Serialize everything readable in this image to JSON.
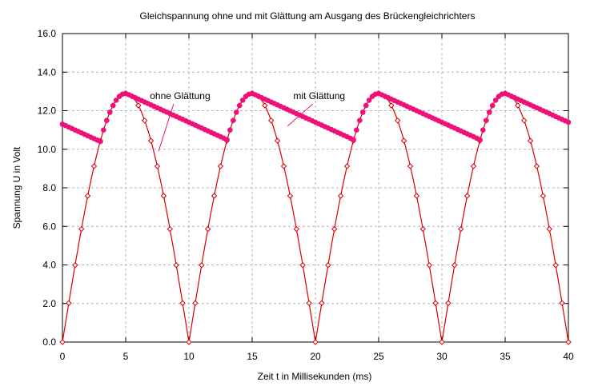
{
  "chart_data": {
    "type": "line",
    "title": "Gleichspannung ohne und mit Glättung am Ausgang des Brückengleichrichters",
    "xlabel": "Zeit t  in Millisekunden (ms)",
    "ylabel": "Spannung U in Volt",
    "xlim": [
      0,
      40
    ],
    "ylim": [
      0,
      16
    ],
    "grid": true,
    "x_ticks": [
      0,
      5,
      10,
      15,
      20,
      25,
      30,
      35,
      40
    ],
    "x_tick_labels": [
      "0",
      "5",
      "10",
      "15",
      "20",
      "25",
      "30",
      "35",
      "40"
    ],
    "y_ticks": [
      0,
      2,
      4,
      6,
      8,
      10,
      12,
      14,
      16
    ],
    "y_tick_labels": [
      "0.0",
      "2.0",
      "4.0",
      "6.0",
      "8.0",
      "10.0",
      "12.0",
      "14.0",
      "16.0"
    ],
    "series": [
      {
        "name": "ohne Glättung",
        "color": "#dd0000",
        "marker": "diamond",
        "period_ms": 10,
        "peak_v": 12.9,
        "x": [
          0,
          0.5,
          1,
          1.5,
          2,
          2.5,
          3,
          3.5,
          4,
          4.5,
          5,
          5.5,
          6,
          6.5,
          7,
          7.5,
          8,
          8.5,
          9,
          9.5,
          10,
          10.5,
          11,
          11.5,
          12,
          12.5,
          13,
          13.5,
          14,
          14.5,
          15,
          15.5,
          16,
          16.5,
          17,
          17.5,
          18,
          18.5,
          19,
          19.5,
          20,
          20.5,
          21,
          21.5,
          22,
          22.5,
          23,
          23.5,
          24,
          24.5,
          25,
          25.5,
          26,
          26.5,
          27,
          27.5,
          28,
          28.5,
          29,
          29.5,
          30,
          30.5,
          31,
          31.5,
          32,
          32.5,
          33,
          33.5,
          34,
          34.5,
          35,
          35.5,
          36,
          36.5,
          37,
          37.5,
          38,
          38.5,
          39,
          39.5,
          40
        ],
        "values": [
          0,
          2.02,
          3.99,
          5.86,
          7.58,
          9.12,
          10.44,
          11.49,
          12.27,
          12.74,
          12.9,
          12.74,
          12.27,
          11.49,
          10.44,
          9.12,
          7.58,
          5.86,
          3.99,
          2.02,
          0,
          2.02,
          3.99,
          5.86,
          7.58,
          9.12,
          10.44,
          11.49,
          12.27,
          12.74,
          12.9,
          12.74,
          12.27,
          11.49,
          10.44,
          9.12,
          7.58,
          5.86,
          3.99,
          2.02,
          0,
          2.02,
          3.99,
          5.86,
          7.58,
          9.12,
          10.44,
          11.49,
          12.27,
          12.74,
          12.9,
          12.74,
          12.27,
          11.49,
          10.44,
          9.12,
          7.58,
          5.86,
          3.99,
          2.02,
          0,
          2.02,
          3.99,
          5.86,
          7.58,
          9.12,
          10.44,
          11.49,
          12.27,
          12.74,
          12.9,
          12.74,
          12.27,
          11.49,
          10.44,
          9.12,
          7.58,
          5.86,
          3.99,
          2.02,
          0
        ]
      },
      {
        "name": "mit Glättung",
        "color": "#ee1177",
        "marker": "filled-circle",
        "start_v": 11.3,
        "trough_v": 10.5,
        "peak_v": 12.9,
        "discharge_rate_v_per_ms": 0.3,
        "step_ms": 0.25
      }
    ],
    "annotations": [
      {
        "text": "ohne Glättung",
        "x": 9.3,
        "y": 12.6,
        "arrow_to": [
          7.6,
          9.9
        ]
      },
      {
        "text": "mit Glättung",
        "x": 20.3,
        "y": 12.6,
        "arrow_to": [
          17.8,
          11.2
        ]
      }
    ]
  }
}
